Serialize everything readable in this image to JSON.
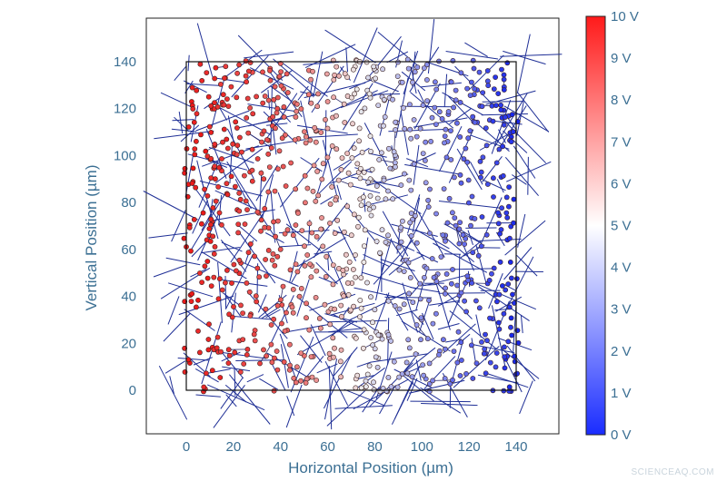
{
  "chart_data": {
    "type": "scatter",
    "title": "",
    "xlabel": "Horizontal Position (µm)",
    "ylabel": "Vertical Position (µm)",
    "xlim": [
      -16,
      155
    ],
    "ylim": [
      -17,
      155
    ],
    "xticks": [
      "0",
      "20",
      "40",
      "60",
      "80",
      "100",
      "120",
      "140"
    ],
    "yticks": [
      "0",
      "20",
      "40",
      "60",
      "80",
      "100",
      "120",
      "140"
    ],
    "grid": false,
    "electrode_box": {
      "x": [
        0,
        140
      ],
      "y": [
        0,
        140
      ]
    },
    "colorbar": {
      "min": 0,
      "max": 10,
      "unit": "V",
      "ticks": [
        "0 V",
        "1 V",
        "2 V",
        "3 V",
        "4 V",
        "5 V",
        "6 V",
        "7 V",
        "8 V",
        "9 V",
        "10 V"
      ],
      "colors": {
        "low": "#1a2cff",
        "mid": "#ffffff",
        "high": "#ff1a1a"
      }
    },
    "series": [
      {
        "description": "nanowire junction network: node voltage decreases from ~10 V at the left edge (x = 0) to ~0 V at the right edge (x = 140)",
        "node_count_approx": 900,
        "voltage_profile": [
          {
            "x": 0,
            "v": 10
          },
          {
            "x": 20,
            "v": 9.3
          },
          {
            "x": 40,
            "v": 8.4
          },
          {
            "x": 60,
            "v": 6.8
          },
          {
            "x": 75,
            "v": 5.0
          },
          {
            "x": 90,
            "v": 3.6
          },
          {
            "x": 110,
            "v": 2.2
          },
          {
            "x": 140,
            "v": 0
          }
        ]
      }
    ]
  },
  "watermark": "SCIENCEAQ.COM"
}
